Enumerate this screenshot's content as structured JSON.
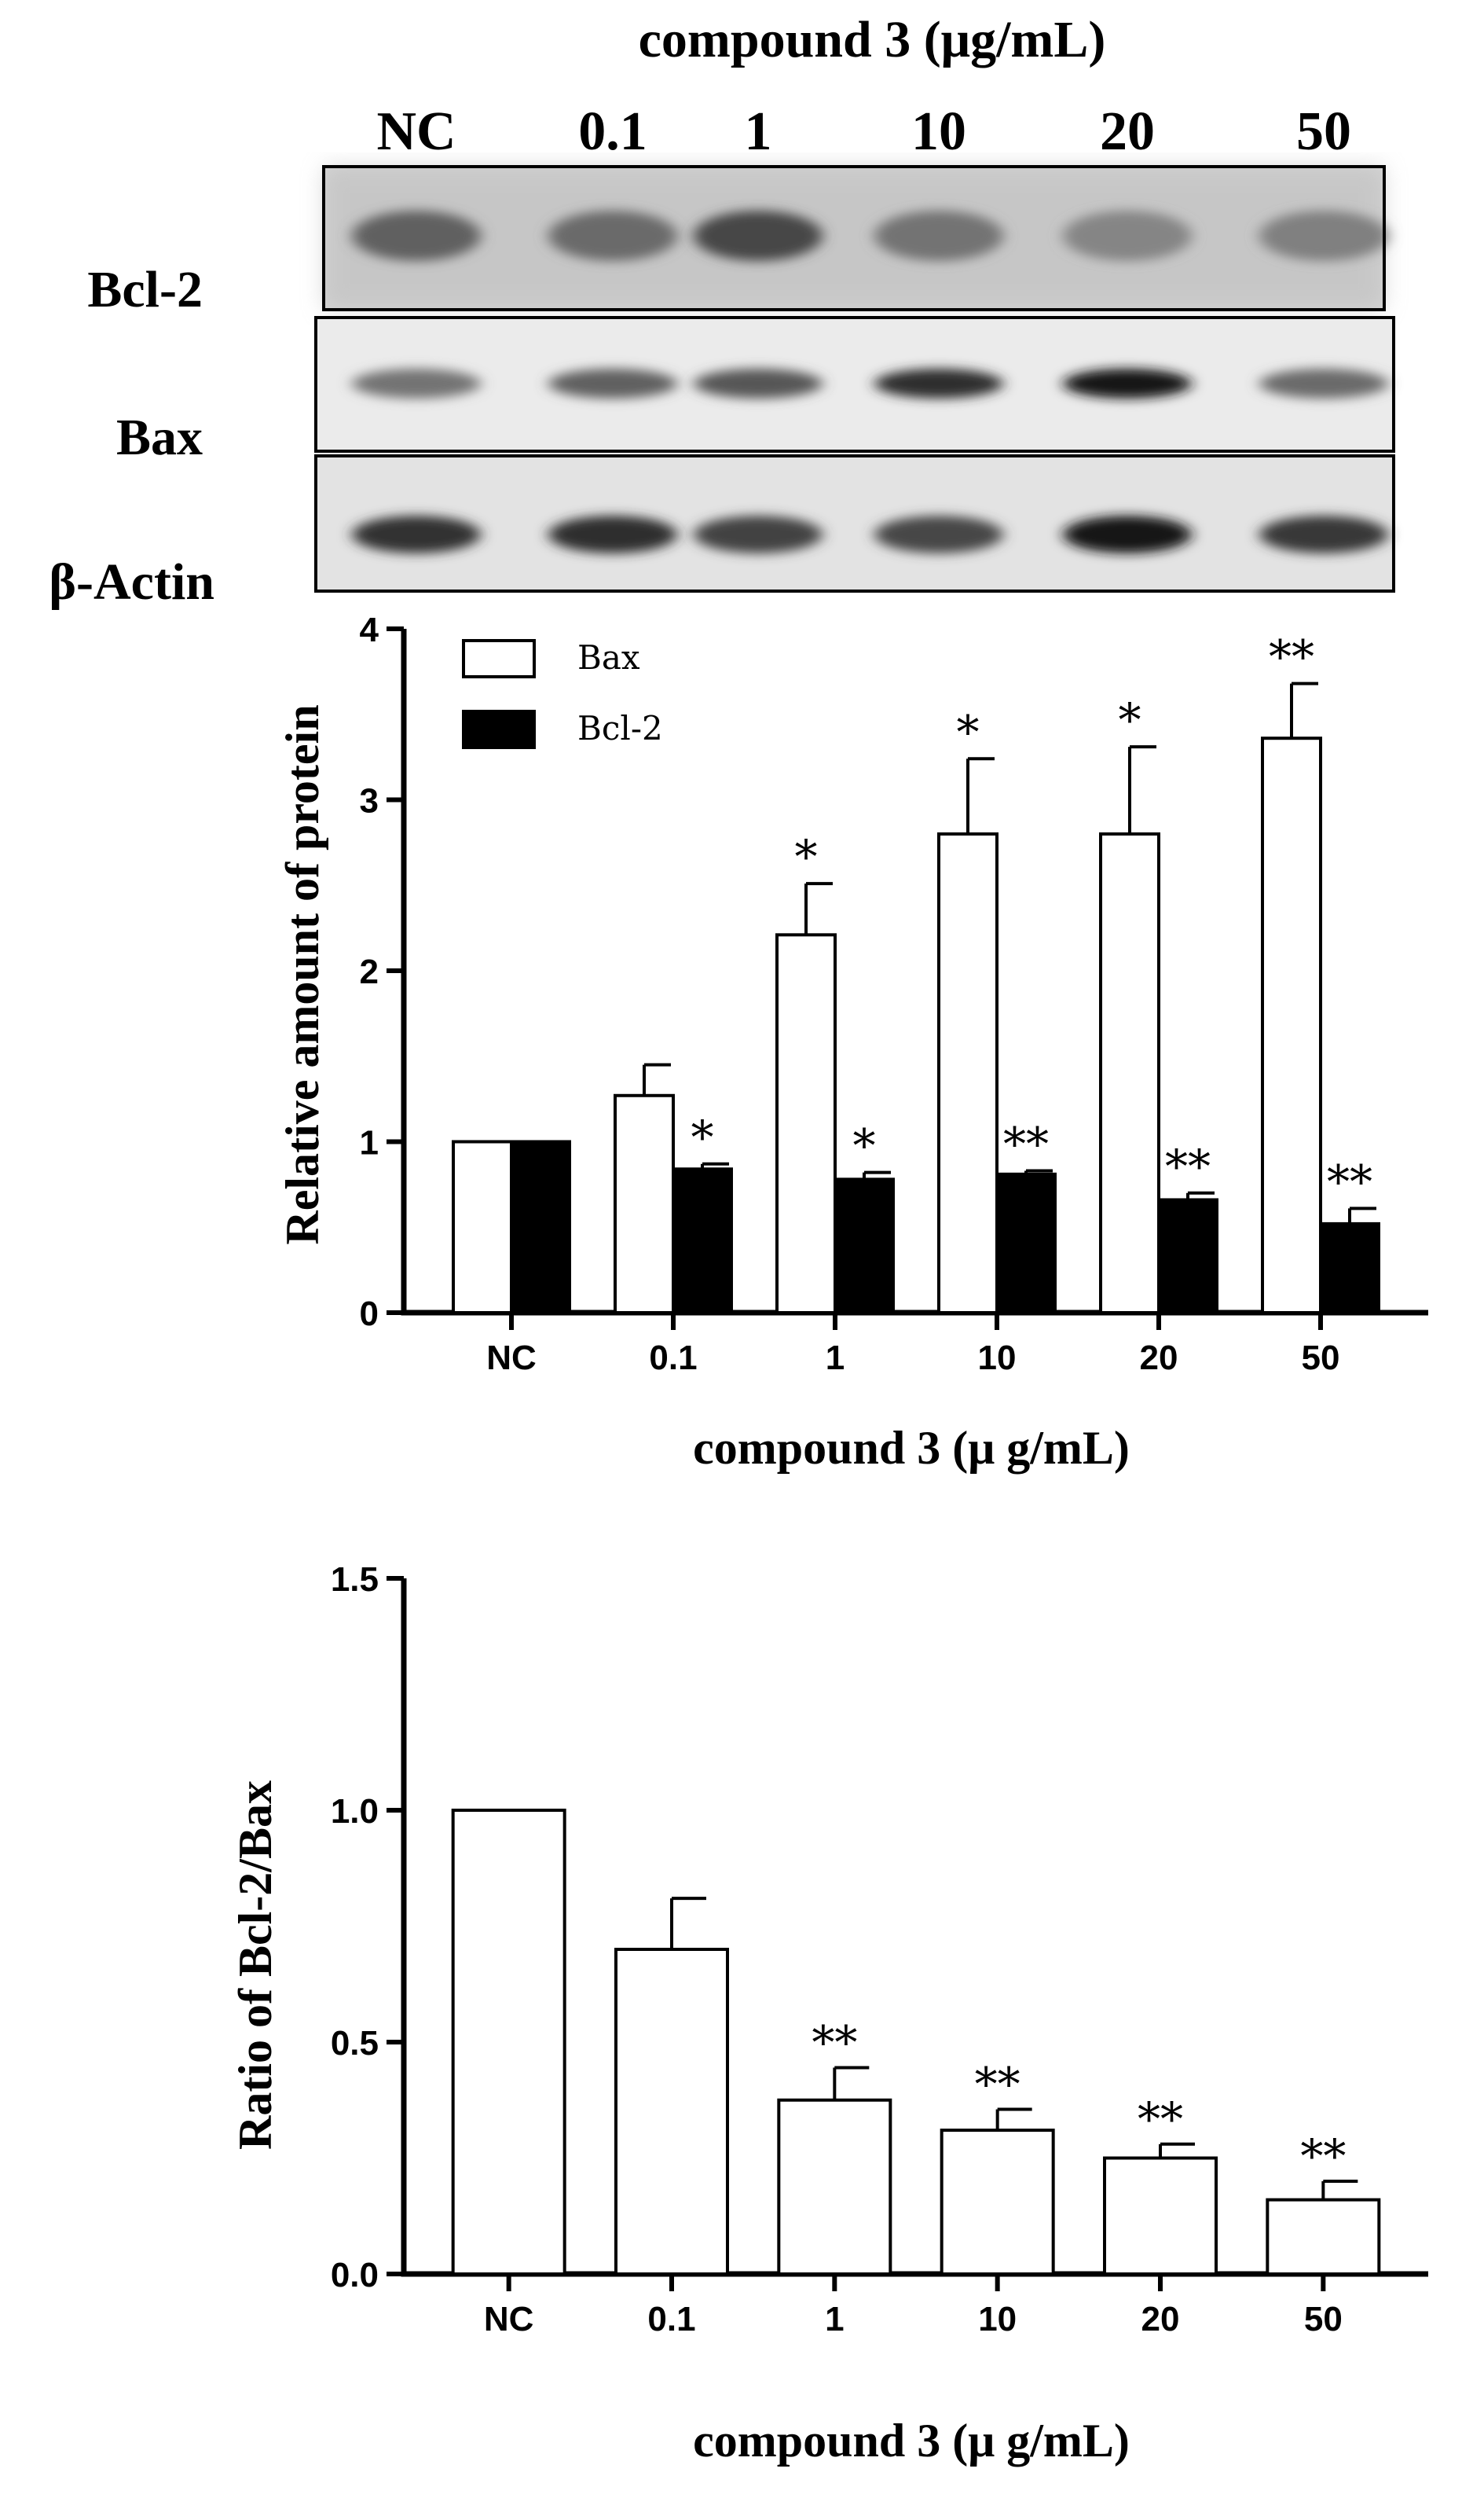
{
  "blot": {
    "header": "compound 3 (μg/mL)",
    "lanes": [
      "NC",
      "0.1",
      "1",
      "10",
      "20",
      "50"
    ],
    "rows": [
      "Bcl-2",
      "Bax",
      "β-Actin"
    ],
    "band_intensity": {
      "Bcl-2": [
        0.62,
        0.58,
        0.72,
        0.55,
        0.48,
        0.5
      ],
      "Bax": [
        0.55,
        0.62,
        0.66,
        0.82,
        0.9,
        0.58
      ],
      "β-Actin": [
        0.8,
        0.82,
        0.74,
        0.72,
        0.92,
        0.78
      ]
    }
  },
  "chart_data": [
    {
      "type": "bar",
      "categories": [
        "NC",
        "0.1",
        "1",
        "10",
        "20",
        "50"
      ],
      "series": [
        {
          "name": "Bax",
          "fill": "#ffffff",
          "values": [
            1.0,
            1.27,
            2.21,
            2.8,
            2.8,
            3.36
          ],
          "errors": [
            0.0,
            0.18,
            0.3,
            0.44,
            0.51,
            0.32
          ],
          "significance": [
            "",
            "",
            "*",
            "*",
            "*",
            "**"
          ]
        },
        {
          "name": "Bcl-2",
          "fill": "#000000",
          "values": [
            1.0,
            0.84,
            0.78,
            0.81,
            0.66,
            0.52
          ],
          "errors": [
            0.0,
            0.03,
            0.04,
            0.02,
            0.04,
            0.09
          ],
          "significance": [
            "",
            "*",
            "*",
            "**",
            "**",
            "**"
          ]
        }
      ],
      "ylabel": "Relative amount of protein",
      "xlabel": "compound 3 (μ g/mL)",
      "ylim": [
        0,
        4
      ],
      "yticks": [
        "0",
        "1",
        "2",
        "3",
        "4"
      ],
      "legend": "top-left",
      "grid": false
    },
    {
      "type": "bar",
      "categories": [
        "NC",
        "0.1",
        "1",
        "10",
        "20",
        "50"
      ],
      "series": [
        {
          "fill": "#ffffff",
          "values": [
            1.0,
            0.7,
            0.375,
            0.31,
            0.25,
            0.16
          ],
          "errors": [
            0.0,
            0.11,
            0.07,
            0.045,
            0.03,
            0.04
          ],
          "significance": [
            "",
            "",
            "**",
            "**",
            "**",
            "**"
          ]
        }
      ],
      "ylabel": "Ratio of Bcl-2/Bax",
      "xlabel": "compound 3 (μ g/mL)",
      "ylim": [
        0,
        1.5
      ],
      "yticks": [
        "0.0",
        "0.5",
        "1.0",
        "1.5"
      ],
      "grid": false
    }
  ]
}
